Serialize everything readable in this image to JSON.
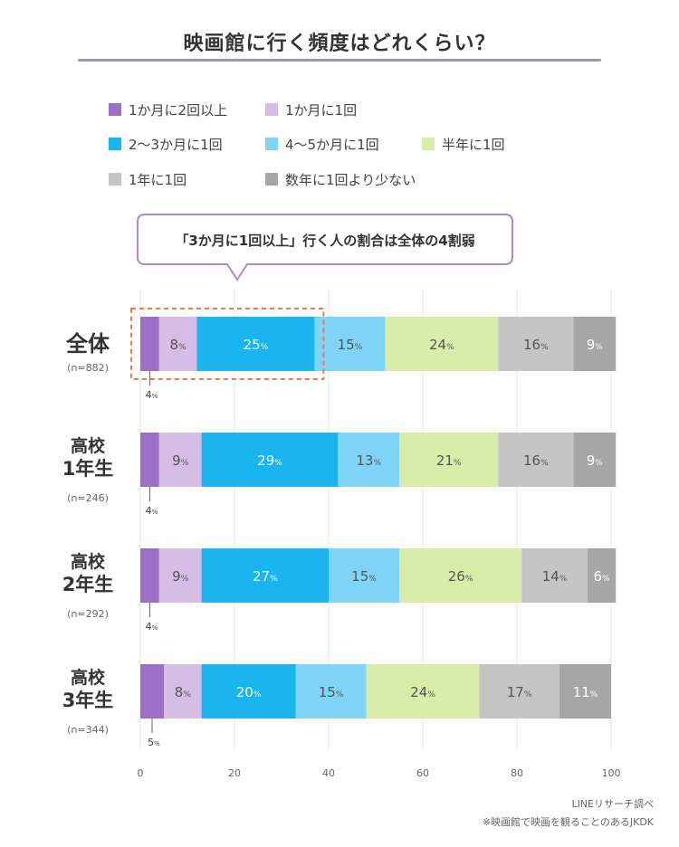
{
  "title": "映画館に行く頻度はどれくらい？",
  "callout": "「3か月に1回以上」行く人の割合は全体の4割弱",
  "source": [
    "LINEリサーチ調べ",
    "※映画館で映画を観ることのあるJKDK"
  ],
  "chart_data": {
    "type": "bar",
    "orientation": "horizontal",
    "stacked": true,
    "xlim": [
      0,
      100
    ],
    "xticks": [
      0,
      20,
      40,
      60,
      80,
      100
    ],
    "value_suffix": "%",
    "legend_placement": "top",
    "categories": [
      {
        "lines": [
          "全体"
        ],
        "n": "(n=882)"
      },
      {
        "lines": [
          "高校",
          "1年生"
        ],
        "n": "(n=246)"
      },
      {
        "lines": [
          "高校",
          "2年生"
        ],
        "n": "(n=292)"
      },
      {
        "lines": [
          "高校",
          "3年生"
        ],
        "n": "(n=344)"
      }
    ],
    "series": [
      {
        "name": "1か月に2回以上",
        "color": "#9b70c6",
        "values": [
          4,
          4,
          4,
          5
        ]
      },
      {
        "name": "1か月に1回",
        "color": "#d6bde6",
        "values": [
          8,
          9,
          9,
          8
        ]
      },
      {
        "name": "2〜3か月に1回",
        "color": "#1ab4ef",
        "values": [
          25,
          29,
          27,
          20
        ]
      },
      {
        "name": "4〜5か月に1回",
        "color": "#7fd4f7",
        "values": [
          15,
          13,
          15,
          15
        ]
      },
      {
        "name": "半年に1回",
        "color": "#d9edaa",
        "values": [
          24,
          21,
          26,
          24
        ]
      },
      {
        "name": "1年に1回",
        "color": "#c5c5c5",
        "values": [
          16,
          16,
          14,
          17
        ]
      },
      {
        "name": "数年に1回より少ない",
        "color": "#a6a6a6",
        "values": [
          9,
          9,
          6,
          11
        ]
      }
    ],
    "highlight": {
      "category_index": 0,
      "series_count": 3
    }
  }
}
